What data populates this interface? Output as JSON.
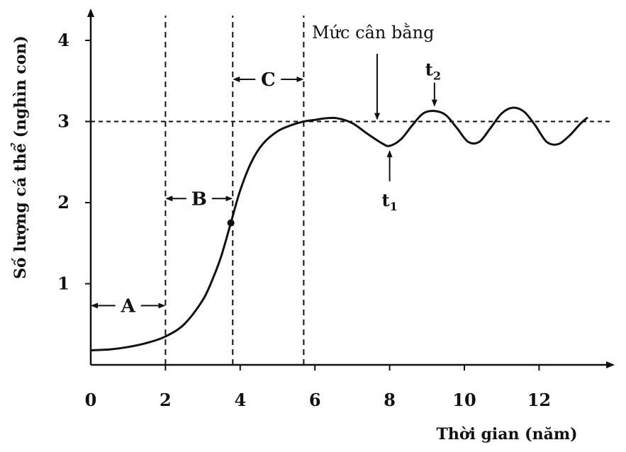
{
  "chart_data": {
    "type": "line",
    "xlabel": "Thời gian (năm)",
    "ylabel": "Số lượng cá thể (nghìn con)",
    "xlim": [
      0,
      13.5
    ],
    "ylim": [
      0,
      4.3
    ],
    "x_ticks": [
      "0",
      "2",
      "4",
      "6",
      "8",
      "10",
      "12"
    ],
    "y_ticks": [
      "1",
      "2",
      "3",
      "4"
    ],
    "equilibrium_level": 3,
    "equilibrium_label": "Mức cân bằng",
    "phase_boundaries": [
      2,
      3.8,
      5.7
    ],
    "phases": [
      {
        "label": "A",
        "from": 0,
        "to": 2
      },
      {
        "label": "B",
        "from": 2,
        "to": 3.8
      },
      {
        "label": "C",
        "from": 3.8,
        "to": 5.7
      }
    ],
    "inflection_point": {
      "x": 3.75,
      "y": 1.75
    },
    "markers": [
      {
        "label": "t",
        "sub": "1",
        "x": 8,
        "y": 2.7
      },
      {
        "label": "t",
        "sub": "2",
        "x": 9.2,
        "y": 3.13
      }
    ],
    "series": [
      {
        "x": [
          0,
          0.5,
          1,
          1.5,
          2,
          2.5,
          3,
          3.3,
          3.5,
          3.75,
          4,
          4.3,
          4.6,
          5,
          5.4,
          5.7,
          6,
          6.3,
          6.6,
          7,
          7.4,
          7.8,
          8,
          8.3,
          8.6,
          8.9,
          9.2,
          9.5,
          9.8,
          10.1,
          10.4,
          10.7,
          11,
          11.3,
          11.6,
          11.9,
          12.2,
          12.5,
          12.8,
          13.1,
          13.3
        ],
        "y": [
          0.18,
          0.19,
          0.22,
          0.27,
          0.35,
          0.5,
          0.8,
          1.1,
          1.35,
          1.75,
          2.15,
          2.5,
          2.72,
          2.88,
          2.96,
          3.0,
          3.02,
          3.04,
          3.04,
          2.98,
          2.85,
          2.73,
          2.7,
          2.78,
          2.95,
          3.1,
          3.13,
          3.08,
          2.92,
          2.75,
          2.75,
          2.92,
          3.1,
          3.17,
          3.12,
          2.95,
          2.75,
          2.72,
          2.82,
          2.97,
          3.05
        ]
      }
    ]
  }
}
